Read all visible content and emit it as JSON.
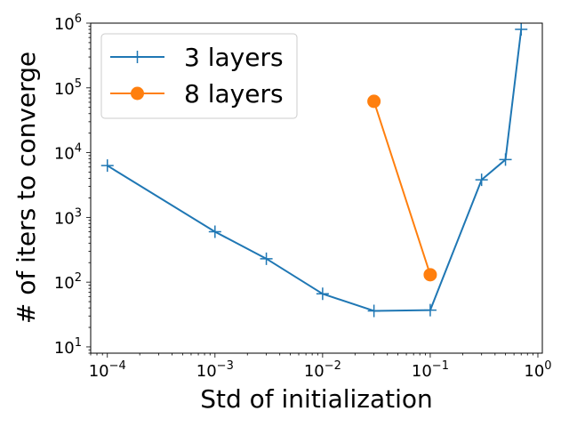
{
  "chart_data": {
    "type": "line",
    "title": "",
    "xlabel": "Std of initialization",
    "ylabel": "# of iters to converge",
    "xscale": "log",
    "yscale": "log",
    "xlim": [
      7e-05,
      1.1
    ],
    "ylim": [
      8,
      1000000
    ],
    "x_ticks": [
      {
        "value": 0.0001,
        "base": "10",
        "exp": "−4"
      },
      {
        "value": 0.001,
        "base": "10",
        "exp": "−3"
      },
      {
        "value": 0.01,
        "base": "10",
        "exp": "−2"
      },
      {
        "value": 0.1,
        "base": "10",
        "exp": "−1"
      },
      {
        "value": 1,
        "base": "10",
        "exp": "0"
      }
    ],
    "y_ticks": [
      {
        "value": 10,
        "base": "10",
        "exp": "1"
      },
      {
        "value": 100,
        "base": "10",
        "exp": "2"
      },
      {
        "value": 1000,
        "base": "10",
        "exp": "3"
      },
      {
        "value": 10000,
        "base": "10",
        "exp": "4"
      },
      {
        "value": 100000,
        "base": "10",
        "exp": "5"
      },
      {
        "value": 1000000,
        "base": "10",
        "exp": "6"
      }
    ],
    "legend_position": "top-left",
    "series": [
      {
        "name": "3 layers",
        "color": "#1f77b4",
        "marker": "plus",
        "x": [
          0.0001,
          0.001,
          0.003,
          0.01,
          0.03,
          0.1,
          0.3,
          0.5,
          0.7
        ],
        "y": [
          6300,
          600,
          230,
          66,
          36,
          37,
          3800,
          7800,
          800000
        ]
      },
      {
        "name": "8 layers",
        "color": "#ff7f0e",
        "marker": "circle",
        "x": [
          0.03,
          0.1
        ],
        "y": [
          62000,
          130
        ]
      }
    ]
  }
}
